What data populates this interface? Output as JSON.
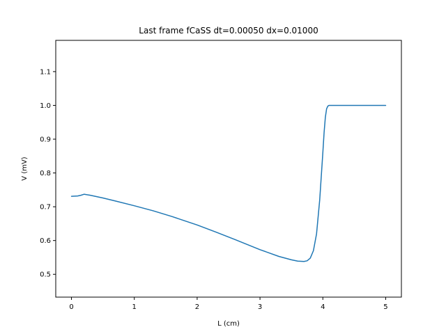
{
  "chart_data": {
    "type": "line",
    "title": "Last frame fCaSS dt=0.00050 dx=0.01000",
    "xlabel": "L (cm)",
    "ylabel": "V (mV)",
    "xlim": [
      -0.25,
      5.25
    ],
    "ylim": [
      0.4325,
      1.1925
    ],
    "xticks": [
      0,
      1,
      2,
      3,
      4,
      5
    ],
    "xtick_labels": [
      "0",
      "1",
      "2",
      "3",
      "4",
      "5"
    ],
    "yticks": [
      0.5,
      0.6,
      0.7,
      0.8,
      0.9,
      1.0,
      1.1
    ],
    "ytick_labels": [
      "0.5",
      "0.6",
      "0.7",
      "0.8",
      "0.9",
      "1.0",
      "1.1"
    ],
    "grid": false,
    "series": [
      {
        "color": "#1f77b4",
        "x": [
          0,
          0.1,
          0.15,
          0.2,
          0.3,
          0.5,
          0.7,
          1.0,
          1.3,
          1.6,
          2.0,
          2.3,
          2.6,
          3.0,
          3.3,
          3.5,
          3.6,
          3.7,
          3.75,
          3.8,
          3.85,
          3.9,
          3.95,
          4.0,
          4.02,
          4.04,
          4.06,
          4.08,
          4.1,
          4.2,
          4.5,
          5.0
        ],
        "y": [
          0.731,
          0.732,
          0.734,
          0.737,
          0.734,
          0.726,
          0.717,
          0.703,
          0.688,
          0.671,
          0.646,
          0.625,
          0.603,
          0.573,
          0.553,
          0.543,
          0.539,
          0.538,
          0.54,
          0.548,
          0.57,
          0.62,
          0.72,
          0.86,
          0.92,
          0.965,
          0.99,
          0.998,
          1.0,
          1.0,
          1.0,
          1.0
        ]
      }
    ]
  }
}
